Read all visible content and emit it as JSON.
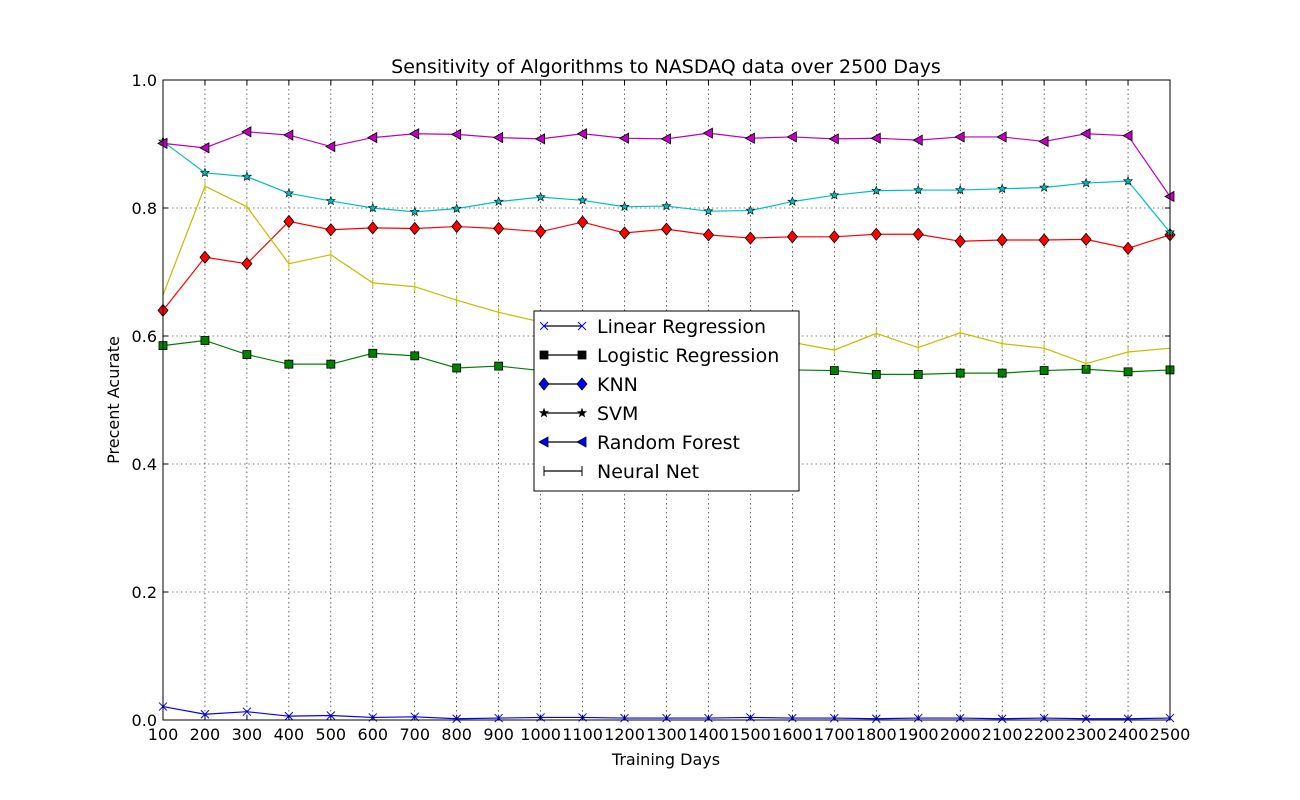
{
  "chart_data": {
    "type": "line",
    "title": "Sensitivity of Algorithms to NASDAQ data over 2500 Days",
    "xlabel": "Training Days",
    "ylabel": "Precent Acurate",
    "xlim": [
      100,
      2500
    ],
    "ylim": [
      0.0,
      1.0
    ],
    "grid": true,
    "legend_position": "center",
    "x": [
      100,
      200,
      300,
      400,
      500,
      600,
      700,
      800,
      900,
      1000,
      1100,
      1200,
      1300,
      1400,
      1500,
      1600,
      1700,
      1800,
      1900,
      2000,
      2100,
      2200,
      2300,
      2400,
      2500
    ],
    "x_ticks": [
      "100",
      "200",
      "300",
      "400",
      "500",
      "600",
      "700",
      "800",
      "900",
      "1000",
      "1100",
      "1200",
      "1300",
      "1400",
      "1500",
      "1600",
      "1700",
      "1800",
      "1900",
      "2000",
      "2100",
      "2200",
      "2300",
      "2400",
      "2500"
    ],
    "y_ticks": [
      "0.0",
      "0.2",
      "0.4",
      "0.6",
      "0.8",
      "1.0"
    ],
    "y_tick_values": [
      0.0,
      0.2,
      0.4,
      0.6,
      0.8,
      1.0
    ],
    "series": [
      {
        "name": "Linear Regression",
        "color": "#0000ff",
        "marker": "x",
        "values": [
          0.021,
          0.009,
          0.013,
          0.006,
          0.007,
          0.004,
          0.005,
          0.002,
          0.003,
          0.004,
          0.004,
          0.003,
          0.003,
          0.003,
          0.004,
          0.003,
          0.003,
          0.002,
          0.003,
          0.003,
          0.002,
          0.003,
          0.002,
          0.002,
          0.003
        ]
      },
      {
        "name": "Logistic Regression",
        "color": "#008000",
        "marker": "square",
        "values": [
          0.585,
          0.593,
          0.571,
          0.556,
          0.556,
          0.573,
          0.569,
          0.55,
          0.553,
          0.546,
          0.545,
          0.548,
          0.548,
          0.548,
          0.548,
          0.547,
          0.546,
          0.54,
          0.54,
          0.542,
          0.542,
          0.546,
          0.548,
          0.544,
          0.547
        ]
      },
      {
        "name": "KNN",
        "color": "#ff0000",
        "marker": "diamond",
        "values": [
          0.64,
          0.723,
          0.713,
          0.779,
          0.766,
          0.769,
          0.768,
          0.771,
          0.768,
          0.763,
          0.778,
          0.761,
          0.767,
          0.758,
          0.753,
          0.755,
          0.755,
          0.759,
          0.759,
          0.748,
          0.75,
          0.75,
          0.751,
          0.737,
          0.758
        ]
      },
      {
        "name": "SVM",
        "color": "#00bfbf",
        "marker": "star",
        "values": [
          0.904,
          0.855,
          0.849,
          0.823,
          0.811,
          0.8,
          0.794,
          0.799,
          0.81,
          0.817,
          0.812,
          0.802,
          0.803,
          0.795,
          0.796,
          0.81,
          0.82,
          0.827,
          0.828,
          0.828,
          0.83,
          0.832,
          0.839,
          0.842,
          0.762
        ]
      },
      {
        "name": "Random Forest",
        "color": "#bf00bf",
        "marker": "triangle-left",
        "values": [
          0.901,
          0.894,
          0.919,
          0.914,
          0.896,
          0.91,
          0.916,
          0.915,
          0.91,
          0.908,
          0.916,
          0.909,
          0.908,
          0.917,
          0.909,
          0.911,
          0.908,
          0.909,
          0.906,
          0.911,
          0.911,
          0.904,
          0.916,
          0.913,
          0.818
        ]
      },
      {
        "name": "Neural Net",
        "color": "#bfbf00",
        "marker": "vline",
        "values": [
          0.664,
          0.834,
          0.802,
          0.713,
          0.727,
          0.683,
          0.677,
          0.656,
          0.637,
          0.622,
          0.61,
          0.6,
          0.597,
          0.595,
          0.593,
          0.59,
          0.578,
          0.604,
          0.582,
          0.605,
          0.588,
          0.581,
          0.557,
          0.575,
          0.581
        ]
      }
    ]
  }
}
